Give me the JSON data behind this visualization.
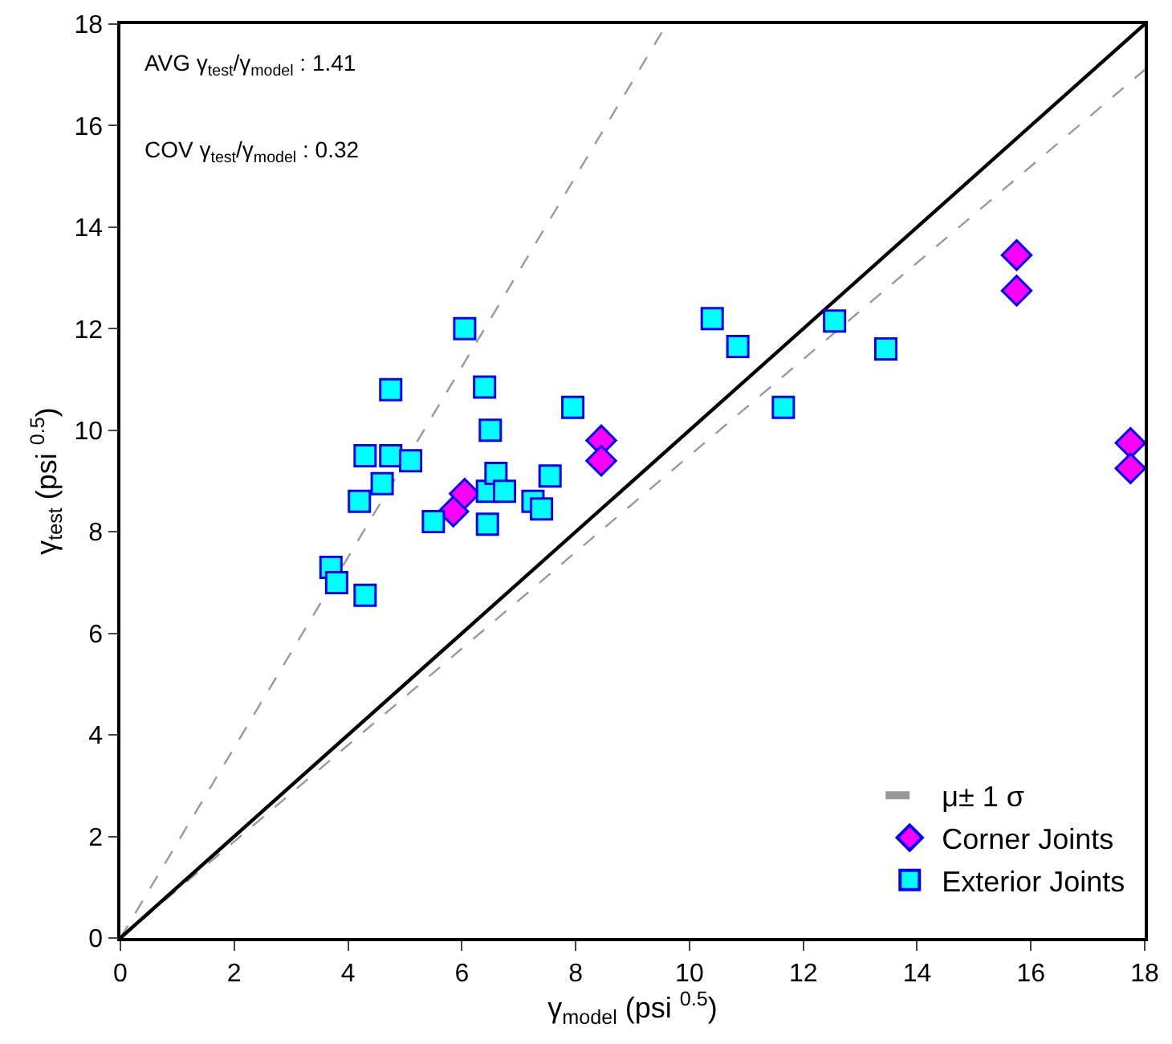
{
  "chart_data": {
    "type": "scatter",
    "xlabel": "γ$_{model}$ (psi $^{0.5}$)",
    "ylabel": "γ$_{test}$ (psi $^{0.5}$)",
    "xlim": [
      0,
      18
    ],
    "ylim": [
      0,
      18
    ],
    "xticks": [
      0,
      2,
      4,
      6,
      8,
      10,
      12,
      14,
      16,
      18
    ],
    "yticks": [
      0,
      2,
      4,
      6,
      8,
      10,
      12,
      14,
      16,
      18
    ],
    "grid": false,
    "legend": "bottom right",
    "annotations": [
      "AVG γ$_{test}$/γ$_{model}$ : 1.41",
      "COV γ$_{test}$/γ$_{model}$ : 0.32"
    ],
    "series": [
      {
        "name": "μ± 1 σ",
        "type": "line",
        "line_style": "dashed",
        "marker": "none",
        "color": "#999999",
        "x": [
          0,
          9.6
        ],
        "values": [
          0,
          18
        ]
      },
      {
        "type": "line",
        "line_style": "dashed",
        "marker": "none",
        "color": "#999999",
        "x": [
          0,
          18
        ],
        "values": [
          0,
          17.1
        ]
      },
      {
        "type": "line",
        "line_style": "solid",
        "marker": "none",
        "color": "#000000",
        "x": [
          0,
          18
        ],
        "values": [
          0,
          18
        ]
      },
      {
        "name": "Corner Joints",
        "marker": "diamond",
        "color": "#ff00ff",
        "x": [
          5.85,
          6.05,
          8.45,
          8.45,
          15.75,
          15.75,
          17.75,
          17.75
        ],
        "values": [
          8.4,
          8.75,
          9.8,
          9.4,
          13.45,
          12.75,
          9.75,
          9.25
        ]
      },
      {
        "name": "Exterior Joints",
        "marker": "square",
        "color": "#00ffff",
        "x": [
          3.7,
          3.8,
          4.3,
          4.2,
          4.3,
          4.75,
          4.6,
          4.75,
          5.1,
          5.5,
          6.05,
          6.4,
          6.5,
          6.45,
          6.45,
          6.6,
          6.75,
          7.25,
          7.4,
          7.55,
          7.95,
          10.4,
          10.85,
          11.65,
          12.55,
          13.45
        ],
        "values": [
          7.3,
          7.0,
          6.75,
          8.6,
          9.5,
          9.5,
          8.95,
          10.8,
          9.4,
          8.2,
          12.0,
          10.85,
          10.0,
          8.8,
          8.15,
          9.15,
          8.8,
          8.6,
          8.45,
          9.1,
          10.45,
          12.2,
          11.65,
          10.45,
          12.15,
          11.6
        ]
      }
    ]
  }
}
